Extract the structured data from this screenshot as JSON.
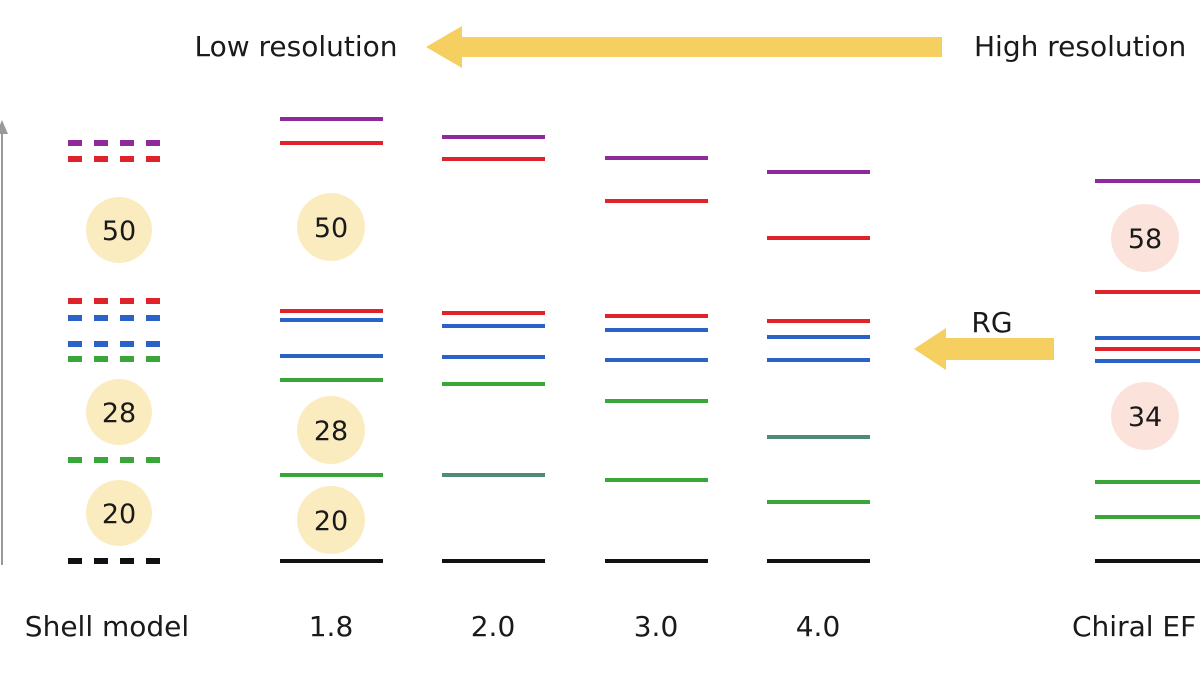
{
  "header": {
    "low_label": "Low resolution",
    "high_label": "High resolution"
  },
  "rg_label": "RG",
  "colors": {
    "purple": "#8e2a9a",
    "red": "#e0232b",
    "blue": "#2a62c8",
    "green": "#3aa63a",
    "teal": "#4e8a78",
    "black": "#111111",
    "arrow": "#f5cf5f",
    "bubble_yellow": "#fbecc0",
    "bubble_pink": "#fbe3dc"
  },
  "columns": [
    {
      "id": "shell",
      "label": "Shell model",
      "style": "dashed",
      "levels": [
        "purple",
        "red",
        "red",
        "blue",
        "blue",
        "green",
        "green",
        "black"
      ],
      "magic": [
        "50",
        "28",
        "20"
      ]
    },
    {
      "id": "c18",
      "label": "1.8",
      "style": "solid",
      "levels": [
        "purple",
        "red",
        "red",
        "blue",
        "blue",
        "green",
        "green",
        "black"
      ],
      "magic": [
        "50",
        "28",
        "20"
      ]
    },
    {
      "id": "c20",
      "label": "2.0",
      "style": "solid",
      "levels": [
        "purple",
        "red",
        "red",
        "blue",
        "blue",
        "green",
        "teal",
        "black"
      ],
      "magic": []
    },
    {
      "id": "c30",
      "label": "3.0",
      "style": "solid",
      "levels": [
        "purple",
        "red",
        "red",
        "blue",
        "blue",
        "green",
        "green",
        "black"
      ],
      "magic": []
    },
    {
      "id": "c40",
      "label": "4.0",
      "style": "solid",
      "levels": [
        "purple",
        "red",
        "red",
        "blue",
        "blue",
        "teal",
        "green",
        "black"
      ],
      "magic": []
    },
    {
      "id": "chiral",
      "label": "Chiral EF",
      "style": "solid",
      "levels": [
        "purple",
        "red",
        "blue",
        "red",
        "blue",
        "green",
        "green",
        "black"
      ],
      "magic": [
        "58",
        "34"
      ]
    }
  ]
}
